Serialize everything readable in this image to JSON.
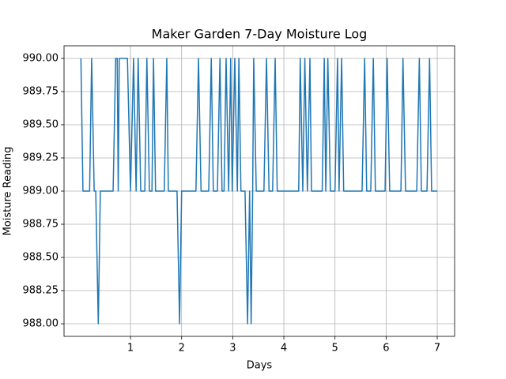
{
  "chart_data": {
    "type": "line",
    "title": "Maker Garden 7-Day Moisture Log",
    "x_label": "Days",
    "y_label": "Moisture Reading",
    "color": "#1f77b4",
    "grid": true,
    "x": [
      0.03,
      0.07,
      0.2,
      0.24,
      0.29,
      0.32,
      0.37,
      0.41,
      0.66,
      0.71,
      0.74,
      0.76,
      0.78,
      0.94,
      1.0,
      1.06,
      1.11,
      1.15,
      1.2,
      1.28,
      1.32,
      1.37,
      1.42,
      1.45,
      1.49,
      1.66,
      1.71,
      1.74,
      1.91,
      1.96,
      2.0,
      2.28,
      2.33,
      2.38,
      2.53,
      2.58,
      2.62,
      2.7,
      2.75,
      2.79,
      2.83,
      2.87,
      2.92,
      2.96,
      2.99,
      3.04,
      3.09,
      3.12,
      3.16,
      3.24,
      3.29,
      3.33,
      3.36,
      3.39,
      3.41,
      3.46,
      3.61,
      3.66,
      3.71,
      3.78,
      3.83,
      3.87,
      4.29,
      4.32,
      4.37,
      4.41,
      4.46,
      4.51,
      4.54,
      4.75,
      4.79,
      4.82,
      4.86,
      4.91,
      5.0,
      5.05,
      5.08,
      5.13,
      5.17,
      5.53,
      5.58,
      5.62,
      5.7,
      5.75,
      5.79,
      5.98,
      6.02,
      6.07,
      6.29,
      6.33,
      6.38,
      6.6,
      6.65,
      6.69,
      6.8,
      6.85,
      6.89,
      7.0
    ],
    "values": [
      990,
      989,
      989,
      990,
      989,
      989,
      988,
      989,
      989,
      990,
      990,
      989,
      990,
      990,
      989,
      990,
      989,
      990,
      989,
      989,
      990,
      989,
      989,
      990,
      989,
      989,
      990,
      989,
      989,
      988,
      989,
      989,
      990,
      989,
      989,
      990,
      989,
      989,
      990,
      989,
      989,
      990,
      989,
      990,
      989,
      990,
      989,
      990,
      989,
      989,
      988,
      989,
      988,
      989,
      990,
      989,
      989,
      990,
      989,
      989,
      990,
      989,
      989,
      990,
      989,
      990,
      989,
      990,
      989,
      989,
      990,
      989,
      990,
      989,
      989,
      990,
      989,
      990,
      989,
      989,
      990,
      989,
      989,
      990,
      989,
      989,
      990,
      989,
      989,
      990,
      989,
      989,
      990,
      989,
      989,
      990,
      989,
      989
    ],
    "xlim": [
      -0.3,
      7.34
    ],
    "xticks": [
      1,
      2,
      3,
      4,
      5,
      6,
      7
    ],
    "ylim": [
      987.905,
      990.095
    ],
    "yticks": [
      {
        "value": 988,
        "label": "988.00"
      },
      {
        "value": 988.25,
        "label": "988.25"
      },
      {
        "value": 988.5,
        "label": "988.50"
      },
      {
        "value": 988.75,
        "label": "988.75"
      },
      {
        "value": 989,
        "label": "989.00"
      },
      {
        "value": 989.25,
        "label": "989.25"
      },
      {
        "value": 989.5,
        "label": "989.50"
      },
      {
        "value": 989.75,
        "label": "989.75"
      },
      {
        "value": 990,
        "label": "990.00"
      }
    ]
  }
}
